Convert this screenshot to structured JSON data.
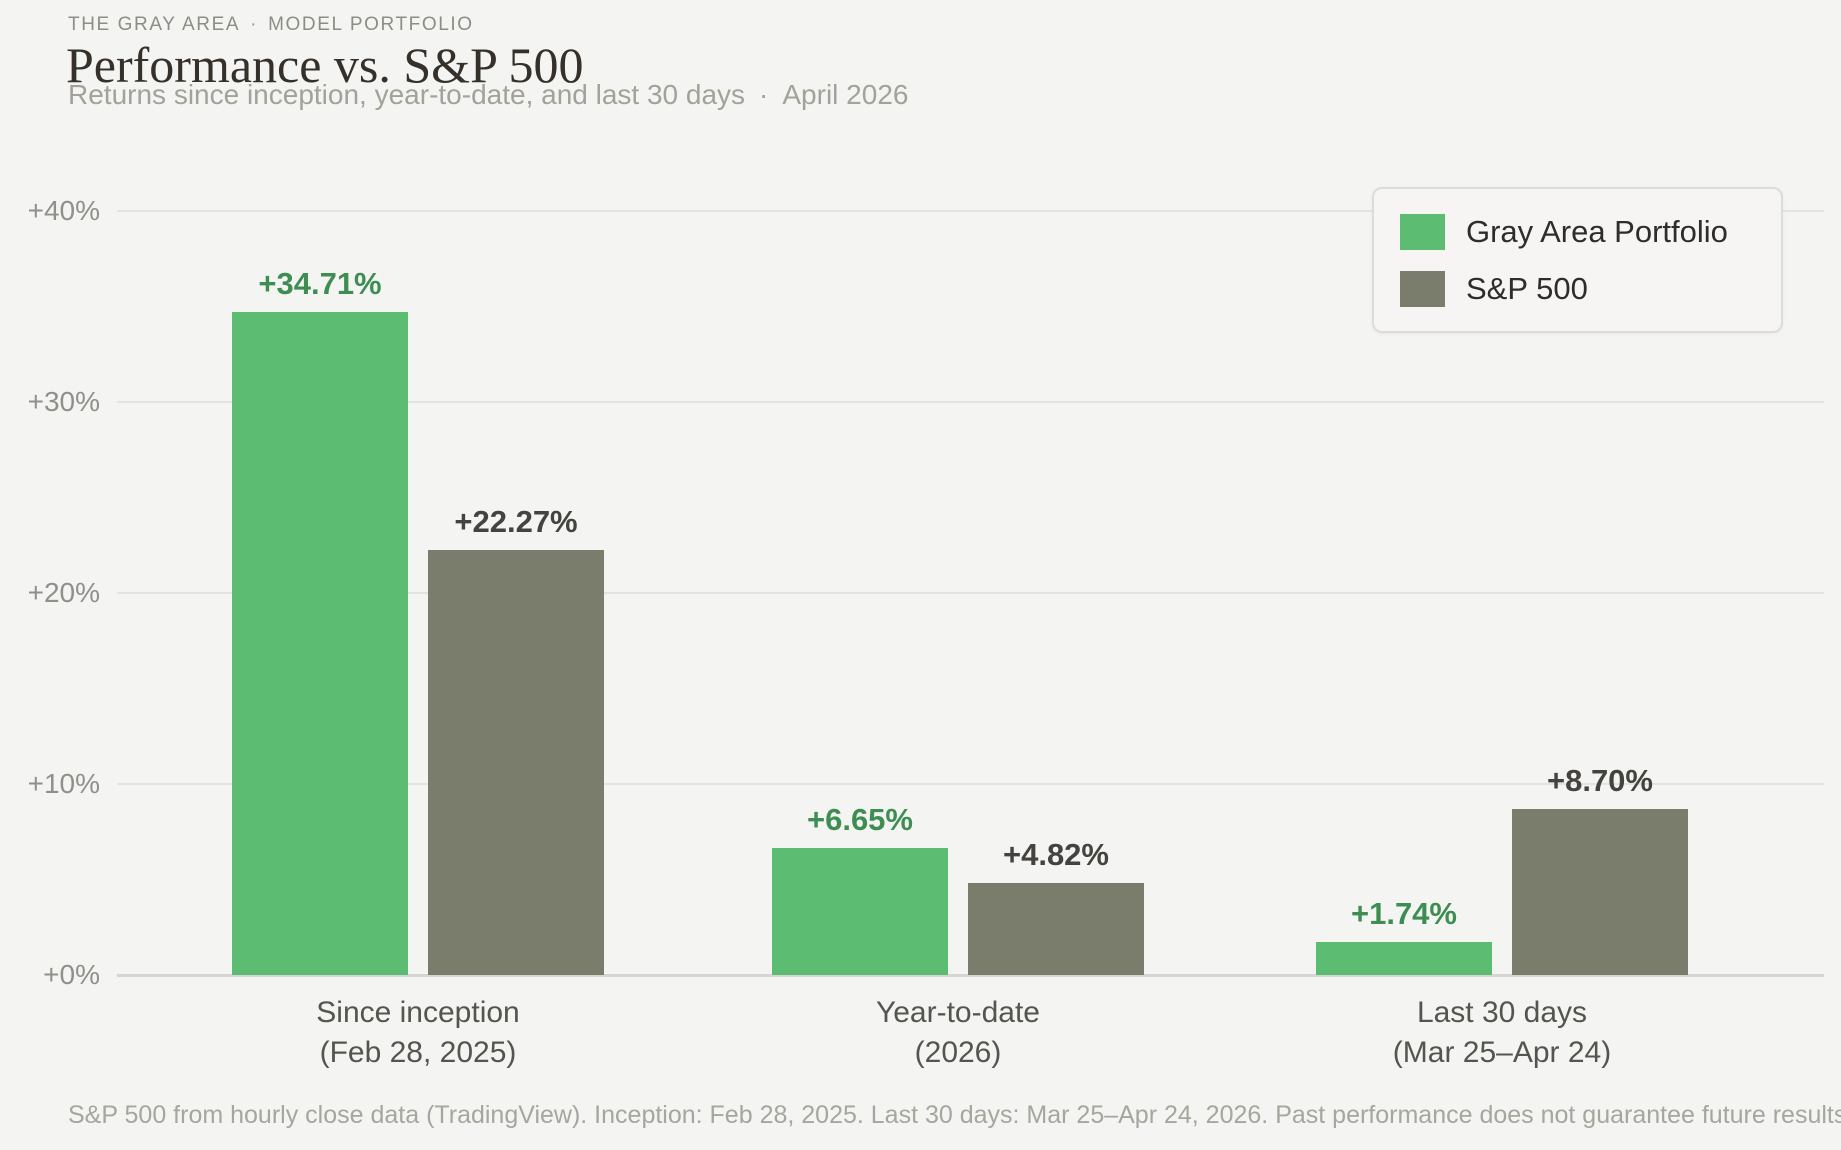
{
  "header": {
    "kicker_brand": "THE GRAY AREA",
    "kicker_separator": "·",
    "kicker_section": "MODEL PORTFOLIO",
    "title": "Performance vs. S&P 500",
    "subtitle": "Returns since inception, year-to-date, and last 30 days",
    "subtitle_separator": "·",
    "subtitle_date": "April 2026"
  },
  "chart_data": {
    "type": "bar",
    "title": "Performance vs. S&P 500",
    "categories": [
      {
        "line1": "Since inception",
        "line2": "(Feb 28, 2025)"
      },
      {
        "line1": "Year-to-date",
        "line2": "(2026)"
      },
      {
        "line1": "Last 30 days",
        "line2": "(Mar 25–Apr 24)"
      }
    ],
    "series": [
      {
        "name": "Gray Area Portfolio",
        "color": "#5cbc72",
        "label_color": "#3e8d53",
        "values": [
          34.71,
          6.65,
          1.74
        ],
        "labels": [
          "+34.71%",
          "+6.65%",
          "+1.74%"
        ]
      },
      {
        "name": "S&P 500",
        "color": "#7a7c6c",
        "label_color": "#44433f",
        "values": [
          22.27,
          4.82,
          8.7
        ],
        "labels": [
          "+22.27%",
          "+4.82%",
          "+8.70%"
        ]
      }
    ],
    "y_axis": {
      "ticks": [
        0,
        10,
        20,
        30,
        40
      ],
      "tick_labels": [
        "+0%",
        "+10%",
        "+20%",
        "+30%",
        "+40%"
      ],
      "min": 0,
      "max": 40
    },
    "grid": "horizontal",
    "legend": {
      "position": "top-right"
    }
  },
  "footer": {
    "disclaimer": "S&P 500 from hourly close data (TradingView). Inception: Feb 28, 2025. Last 30 days: Mar 25–Apr 24, 2026. Past performance does not guarantee future results."
  },
  "colors": {
    "background": "#f4f4f2",
    "portfolio_green": "#5cbc72",
    "sp500_gray": "#7a7c6c",
    "green_label": "#3e8d53",
    "dark_label": "#44433f"
  }
}
